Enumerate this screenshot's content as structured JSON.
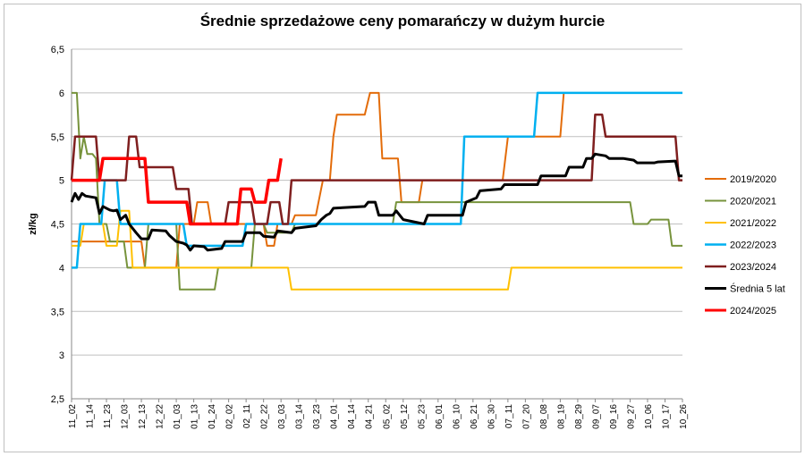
{
  "chart_data": {
    "type": "line",
    "title": "Średnie sprzedażowe ceny pomarańczy w dużym hurcie",
    "xlabel": "",
    "ylabel": "zł/kg",
    "ylim": [
      2.5,
      6.5
    ],
    "yticks": [
      "2,5",
      "3",
      "3,5",
      "4",
      "4,5",
      "5",
      "5,5",
      "6",
      "6,5"
    ],
    "ytick_values": [
      2.5,
      3,
      3.5,
      4,
      4.5,
      5,
      5.5,
      6,
      6.5
    ],
    "grid": "horizontal",
    "legend_position": "right",
    "x_labels": [
      "11_02",
      "11_14",
      "11_23",
      "12_03",
      "12_13",
      "12_22",
      "01_03",
      "01_13",
      "01_24",
      "02_02",
      "02_11",
      "02_22",
      "03_03",
      "03_14",
      "03_23",
      "04_01",
      "04_14",
      "04_21",
      "05_02",
      "05_12",
      "05_23",
      "06_01",
      "06_10",
      "06_21",
      "06_30",
      "07_11",
      "07_20",
      "08_08",
      "08_19",
      "08_29",
      "09_07",
      "09_16",
      "09_27",
      "10_06",
      "10_17",
      "10_26"
    ],
    "series": [
      {
        "name": "2019/2020",
        "color": "#e36c0a",
        "width": 2,
        "points": [
          [
            0,
            4.3
          ],
          [
            4,
            4.3
          ],
          [
            4.2,
            4.0
          ],
          [
            6,
            4.0
          ],
          [
            6.2,
            4.5
          ],
          [
            7,
            4.5
          ],
          [
            7.2,
            4.75
          ],
          [
            7.8,
            4.75
          ],
          [
            8,
            4.5
          ],
          [
            11,
            4.5
          ],
          [
            11.2,
            4.25
          ],
          [
            11.6,
            4.25
          ],
          [
            11.8,
            4.5
          ],
          [
            12.6,
            4.5
          ],
          [
            12.8,
            4.6
          ],
          [
            14,
            4.6
          ],
          [
            14.4,
            5.0
          ],
          [
            14.8,
            5.0
          ],
          [
            15,
            5.5
          ],
          [
            15.2,
            5.75
          ],
          [
            16.8,
            5.75
          ],
          [
            17.1,
            6.0
          ],
          [
            17.6,
            6.0
          ],
          [
            17.8,
            5.25
          ],
          [
            18.7,
            5.25
          ],
          [
            18.9,
            4.75
          ],
          [
            19.9,
            4.75
          ],
          [
            20.1,
            5.0
          ],
          [
            24.7,
            5.0
          ],
          [
            25,
            5.5
          ],
          [
            28,
            5.5
          ],
          [
            28.2,
            6.0
          ]
        ]
      },
      {
        "name": "2020/2021",
        "color": "#77933c",
        "width": 2,
        "points": [
          [
            0,
            6.0
          ],
          [
            0.3,
            6.0
          ],
          [
            0.5,
            5.25
          ],
          [
            0.7,
            5.5
          ],
          [
            0.9,
            5.3
          ],
          [
            1.2,
            5.3
          ],
          [
            1.4,
            5.25
          ],
          [
            1.6,
            4.5
          ],
          [
            2,
            4.5
          ],
          [
            2.2,
            4.3
          ],
          [
            3,
            4.3
          ],
          [
            3.2,
            4.0
          ],
          [
            4.2,
            4.0
          ],
          [
            4.4,
            4.5
          ],
          [
            6,
            4.5
          ],
          [
            6.2,
            3.75
          ],
          [
            8.2,
            3.75
          ],
          [
            8.4,
            4.0
          ],
          [
            10.3,
            4.0
          ],
          [
            10.5,
            4.5
          ],
          [
            11,
            4.5
          ],
          [
            11.2,
            4.4
          ],
          [
            12.6,
            4.4
          ],
          [
            12.8,
            4.5
          ],
          [
            18.4,
            4.5
          ],
          [
            18.6,
            4.75
          ],
          [
            30.5,
            4.75
          ],
          [
            31.2,
            4.75
          ],
          [
            32,
            4.75
          ],
          [
            32.2,
            4.5
          ],
          [
            33,
            4.5
          ],
          [
            33.2,
            4.55
          ],
          [
            34.2,
            4.55
          ],
          [
            34.4,
            4.25
          ],
          [
            35,
            4.25
          ]
        ]
      },
      {
        "name": "2021/2022",
        "color": "#ffc000",
        "width": 2,
        "points": [
          [
            0,
            4.25
          ],
          [
            0.5,
            4.25
          ],
          [
            0.7,
            4.5
          ],
          [
            1.8,
            4.5
          ],
          [
            2,
            4.25
          ],
          [
            2.6,
            4.25
          ],
          [
            2.8,
            4.65
          ],
          [
            3.3,
            4.65
          ],
          [
            3.5,
            4.0
          ],
          [
            12.4,
            4.0
          ],
          [
            12.6,
            3.75
          ],
          [
            24.7,
            3.75
          ],
          [
            25,
            3.75
          ],
          [
            25.2,
            4.0
          ],
          [
            35,
            4.0
          ]
        ]
      },
      {
        "name": "2022/2023",
        "color": "#00b0f0",
        "width": 2.5,
        "points": [
          [
            0,
            4.0
          ],
          [
            0.3,
            4.0
          ],
          [
            0.5,
            4.5
          ],
          [
            1.7,
            4.5
          ],
          [
            1.9,
            5.0
          ],
          [
            2.6,
            5.0
          ],
          [
            2.8,
            4.5
          ],
          [
            6.4,
            4.5
          ],
          [
            6.6,
            4.25
          ],
          [
            9.8,
            4.25
          ],
          [
            10,
            4.5
          ],
          [
            22.3,
            4.5
          ],
          [
            22.5,
            5.5
          ],
          [
            26.5,
            5.5
          ],
          [
            26.7,
            6.0
          ],
          [
            35,
            6.0
          ]
        ]
      },
      {
        "name": "2023/2024",
        "color": "#7f1f1f",
        "width": 2.5,
        "points": [
          [
            0,
            5.0
          ],
          [
            0.2,
            5.5
          ],
          [
            1.4,
            5.5
          ],
          [
            1.6,
            5.0
          ],
          [
            3.1,
            5.0
          ],
          [
            3.3,
            5.5
          ],
          [
            3.7,
            5.5
          ],
          [
            3.9,
            5.15
          ],
          [
            5.8,
            5.15
          ],
          [
            6,
            4.9
          ],
          [
            6.7,
            4.9
          ],
          [
            6.9,
            4.5
          ],
          [
            8.8,
            4.5
          ],
          [
            9,
            4.75
          ],
          [
            10.3,
            4.75
          ],
          [
            10.5,
            4.5
          ],
          [
            11.2,
            4.5
          ],
          [
            11.4,
            4.75
          ],
          [
            11.9,
            4.75
          ],
          [
            12.1,
            4.5
          ],
          [
            12.4,
            4.5
          ],
          [
            12.6,
            5.0
          ],
          [
            29.8,
            5.0
          ],
          [
            30,
            5.75
          ],
          [
            30.4,
            5.75
          ],
          [
            30.6,
            5.5
          ],
          [
            34.6,
            5.5
          ],
          [
            34.8,
            5.0
          ],
          [
            35,
            5.0
          ]
        ]
      },
      {
        "name": "Średnia 5 lat",
        "color": "#000000",
        "width": 3,
        "points": [
          [
            0,
            4.75
          ],
          [
            0.2,
            4.85
          ],
          [
            0.4,
            4.78
          ],
          [
            0.6,
            4.85
          ],
          [
            0.8,
            4.82
          ],
          [
            1.4,
            4.8
          ],
          [
            1.6,
            4.62
          ],
          [
            1.8,
            4.7
          ],
          [
            2.2,
            4.66
          ],
          [
            2.4,
            4.65
          ],
          [
            2.6,
            4.66
          ],
          [
            2.8,
            4.55
          ],
          [
            3.1,
            4.6
          ],
          [
            3.3,
            4.5
          ],
          [
            3.7,
            4.4
          ],
          [
            4,
            4.33
          ],
          [
            4.4,
            4.33
          ],
          [
            4.6,
            4.43
          ],
          [
            5.4,
            4.42
          ],
          [
            5.6,
            4.37
          ],
          [
            6,
            4.3
          ],
          [
            6.4,
            4.28
          ],
          [
            6.6,
            4.26
          ],
          [
            6.8,
            4.2
          ],
          [
            7,
            4.25
          ],
          [
            7.6,
            4.24
          ],
          [
            7.8,
            4.2
          ],
          [
            8.6,
            4.22
          ],
          [
            8.8,
            4.3
          ],
          [
            9.8,
            4.3
          ],
          [
            10,
            4.4
          ],
          [
            10.8,
            4.4
          ],
          [
            11,
            4.36
          ],
          [
            11.6,
            4.35
          ],
          [
            11.8,
            4.42
          ],
          [
            12.6,
            4.4
          ],
          [
            12.8,
            4.45
          ],
          [
            14,
            4.48
          ],
          [
            14.3,
            4.55
          ],
          [
            14.6,
            4.6
          ],
          [
            14.8,
            4.62
          ],
          [
            15,
            4.68
          ],
          [
            16.8,
            4.7
          ],
          [
            17,
            4.75
          ],
          [
            17.4,
            4.75
          ],
          [
            17.6,
            4.6
          ],
          [
            18.4,
            4.6
          ],
          [
            18.6,
            4.65
          ],
          [
            19,
            4.55
          ],
          [
            20.2,
            4.5
          ],
          [
            20.4,
            4.6
          ],
          [
            22.4,
            4.6
          ],
          [
            22.6,
            4.75
          ],
          [
            23.2,
            4.8
          ],
          [
            23.4,
            4.88
          ],
          [
            24.6,
            4.9
          ],
          [
            24.8,
            4.95
          ],
          [
            26.7,
            4.95
          ],
          [
            26.9,
            5.05
          ],
          [
            28.3,
            5.05
          ],
          [
            28.5,
            5.15
          ],
          [
            29.3,
            5.15
          ],
          [
            29.5,
            5.25
          ],
          [
            29.8,
            5.25
          ],
          [
            30,
            5.3
          ],
          [
            30.6,
            5.28
          ],
          [
            30.8,
            5.25
          ],
          [
            31.6,
            5.25
          ],
          [
            32.2,
            5.23
          ],
          [
            32.4,
            5.2
          ],
          [
            33.4,
            5.2
          ],
          [
            33.6,
            5.21
          ],
          [
            34.6,
            5.22
          ],
          [
            34.8,
            5.05
          ],
          [
            35,
            5.05
          ]
        ]
      },
      {
        "name": "2024/2025",
        "color": "#ff0000",
        "width": 3.5,
        "points": [
          [
            0,
            5.0
          ],
          [
            1.6,
            5.0
          ],
          [
            1.8,
            5.25
          ],
          [
            4.2,
            5.25
          ],
          [
            4.4,
            4.75
          ],
          [
            6.6,
            4.75
          ],
          [
            6.8,
            4.5
          ],
          [
            9.5,
            4.5
          ],
          [
            9.7,
            4.9
          ],
          [
            10.3,
            4.9
          ],
          [
            10.5,
            4.75
          ],
          [
            11.1,
            4.75
          ],
          [
            11.3,
            5.0
          ],
          [
            11.6,
            5.0
          ],
          [
            11.8,
            5.0
          ],
          [
            12,
            5.25
          ]
        ]
      }
    ]
  }
}
